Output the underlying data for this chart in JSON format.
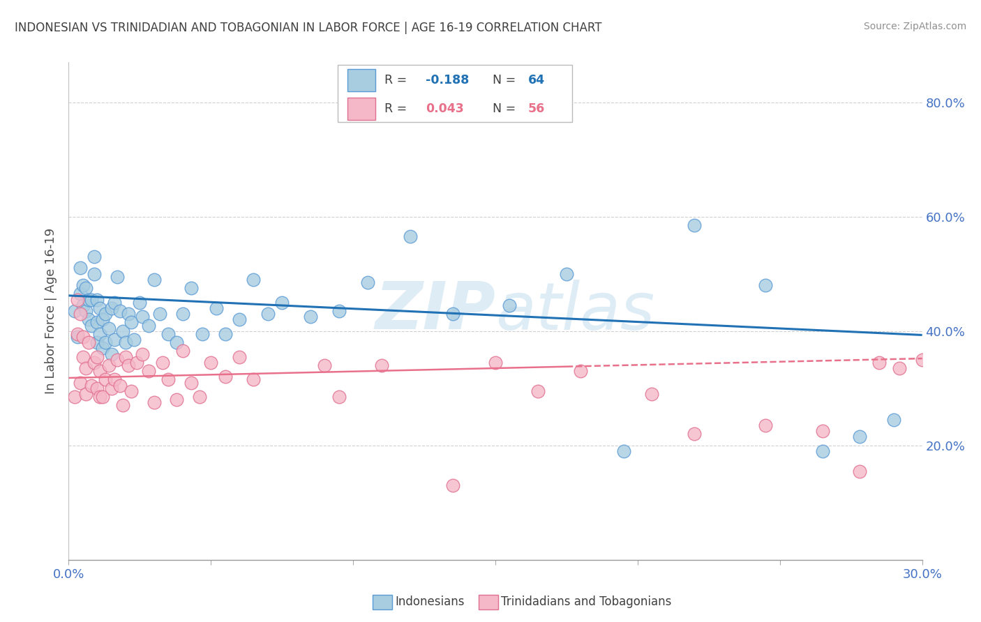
{
  "title": "INDONESIAN VS TRINIDADIAN AND TOBAGONIAN IN LABOR FORCE | AGE 16-19 CORRELATION CHART",
  "source": "Source: ZipAtlas.com",
  "ylabel": "In Labor Force | Age 16-19",
  "xlim": [
    0.0,
    0.3
  ],
  "ylim": [
    0.0,
    0.87
  ],
  "yticks": [
    0.2,
    0.4,
    0.6,
    0.8
  ],
  "ytick_labels": [
    "20.0%",
    "40.0%",
    "60.0%",
    "80.0%"
  ],
  "xticks": [
    0.0,
    0.05,
    0.1,
    0.15,
    0.2,
    0.25,
    0.3
  ],
  "color_blue": "#a8cce0",
  "color_pink": "#f5b8c8",
  "color_blue_edge": "#5b9bd5",
  "color_pink_edge": "#e07090",
  "color_blue_line": "#2171b5",
  "color_pink_line": "#e8708a",
  "color_title": "#404040",
  "color_source": "#909090",
  "color_axis_label": "#505050",
  "color_tick_label": "#4472c4",
  "blue_line_x0": 0.0,
  "blue_line_y0": 0.462,
  "blue_line_x1": 0.3,
  "blue_line_y1": 0.393,
  "pink_line_x0": 0.0,
  "pink_line_y0": 0.318,
  "pink_line_x1": 0.3,
  "pink_line_y1": 0.352,
  "indo_x": [
    0.002,
    0.003,
    0.004,
    0.004,
    0.005,
    0.005,
    0.006,
    0.006,
    0.007,
    0.007,
    0.008,
    0.008,
    0.009,
    0.009,
    0.01,
    0.01,
    0.01,
    0.011,
    0.011,
    0.012,
    0.012,
    0.013,
    0.013,
    0.014,
    0.015,
    0.015,
    0.016,
    0.016,
    0.017,
    0.018,
    0.019,
    0.02,
    0.021,
    0.022,
    0.023,
    0.025,
    0.026,
    0.028,
    0.03,
    0.032,
    0.035,
    0.038,
    0.04,
    0.043,
    0.047,
    0.052,
    0.055,
    0.06,
    0.065,
    0.07,
    0.075,
    0.085,
    0.095,
    0.105,
    0.12,
    0.135,
    0.155,
    0.175,
    0.195,
    0.22,
    0.245,
    0.265,
    0.278,
    0.29
  ],
  "indo_y": [
    0.435,
    0.39,
    0.465,
    0.51,
    0.445,
    0.48,
    0.435,
    0.475,
    0.42,
    0.455,
    0.41,
    0.455,
    0.5,
    0.53,
    0.38,
    0.415,
    0.455,
    0.395,
    0.44,
    0.37,
    0.42,
    0.38,
    0.43,
    0.405,
    0.36,
    0.44,
    0.385,
    0.45,
    0.495,
    0.435,
    0.4,
    0.38,
    0.43,
    0.415,
    0.385,
    0.45,
    0.425,
    0.41,
    0.49,
    0.43,
    0.395,
    0.38,
    0.43,
    0.475,
    0.395,
    0.44,
    0.395,
    0.42,
    0.49,
    0.43,
    0.45,
    0.425,
    0.435,
    0.485,
    0.565,
    0.43,
    0.445,
    0.5,
    0.19,
    0.585,
    0.48,
    0.19,
    0.215,
    0.245
  ],
  "trin_x": [
    0.002,
    0.003,
    0.003,
    0.004,
    0.004,
    0.005,
    0.005,
    0.006,
    0.006,
    0.007,
    0.008,
    0.009,
    0.01,
    0.01,
    0.011,
    0.011,
    0.012,
    0.013,
    0.014,
    0.015,
    0.016,
    0.017,
    0.018,
    0.019,
    0.02,
    0.021,
    0.022,
    0.024,
    0.026,
    0.028,
    0.03,
    0.033,
    0.035,
    0.038,
    0.04,
    0.043,
    0.046,
    0.05,
    0.055,
    0.06,
    0.065,
    0.09,
    0.095,
    0.11,
    0.135,
    0.15,
    0.165,
    0.18,
    0.205,
    0.22,
    0.245,
    0.265,
    0.278,
    0.285,
    0.292,
    0.3
  ],
  "trin_y": [
    0.285,
    0.395,
    0.455,
    0.31,
    0.43,
    0.355,
    0.39,
    0.29,
    0.335,
    0.38,
    0.305,
    0.345,
    0.3,
    0.355,
    0.285,
    0.33,
    0.285,
    0.315,
    0.34,
    0.3,
    0.315,
    0.35,
    0.305,
    0.27,
    0.355,
    0.34,
    0.295,
    0.345,
    0.36,
    0.33,
    0.275,
    0.345,
    0.315,
    0.28,
    0.365,
    0.31,
    0.285,
    0.345,
    0.32,
    0.355,
    0.315,
    0.34,
    0.285,
    0.34,
    0.13,
    0.345,
    0.295,
    0.33,
    0.29,
    0.22,
    0.235,
    0.225,
    0.155,
    0.345,
    0.335,
    0.35
  ],
  "watermark_color": "#c8e0f0",
  "watermark_alpha": 0.6
}
